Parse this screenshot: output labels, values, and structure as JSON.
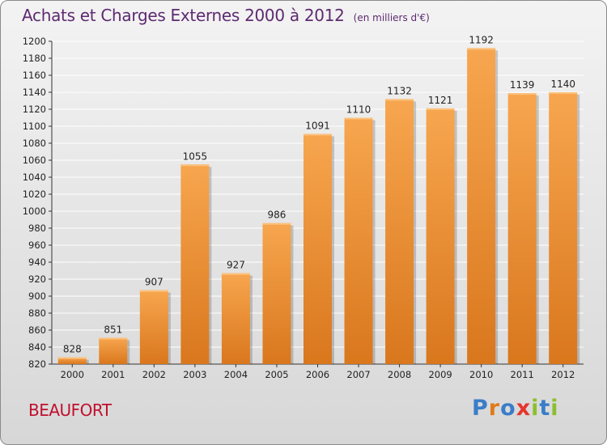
{
  "header": {
    "title": "Achats et Charges Externes 2000 à 2012",
    "subtitle": "(en milliers d'€)"
  },
  "footer": {
    "commune": "BEAUFORT",
    "brand": "Proxiti"
  },
  "colors": {
    "title": "#5e2a71",
    "commune": "#c0102e",
    "bar_light": "#f7a64f",
    "bar_dark": "#d9771d",
    "brand_letters": [
      "#3a7dc8",
      "#e07b1a",
      "#3a7dc8",
      "#e5352c",
      "#8bbf2e",
      "#3a7dc8",
      "#8bbf2e"
    ]
  },
  "chart_data": {
    "type": "bar",
    "categories": [
      "2000",
      "2001",
      "2002",
      "2003",
      "2004",
      "2005",
      "2006",
      "2007",
      "2008",
      "2009",
      "2010",
      "2011",
      "2012"
    ],
    "values": [
      828,
      851,
      907,
      1055,
      927,
      986,
      1091,
      1110,
      1132,
      1121,
      1192,
      1139,
      1140
    ],
    "ylim": [
      820,
      1200
    ],
    "yticks": [
      820,
      840,
      860,
      880,
      900,
      920,
      940,
      960,
      980,
      1000,
      1020,
      1040,
      1060,
      1080,
      1100,
      1120,
      1140,
      1160,
      1180,
      1200
    ],
    "grid": true,
    "title": "Achats et Charges Externes 2000 à 2012",
    "subtitle": "(en milliers d'€)",
    "xlabel": "",
    "ylabel": ""
  }
}
